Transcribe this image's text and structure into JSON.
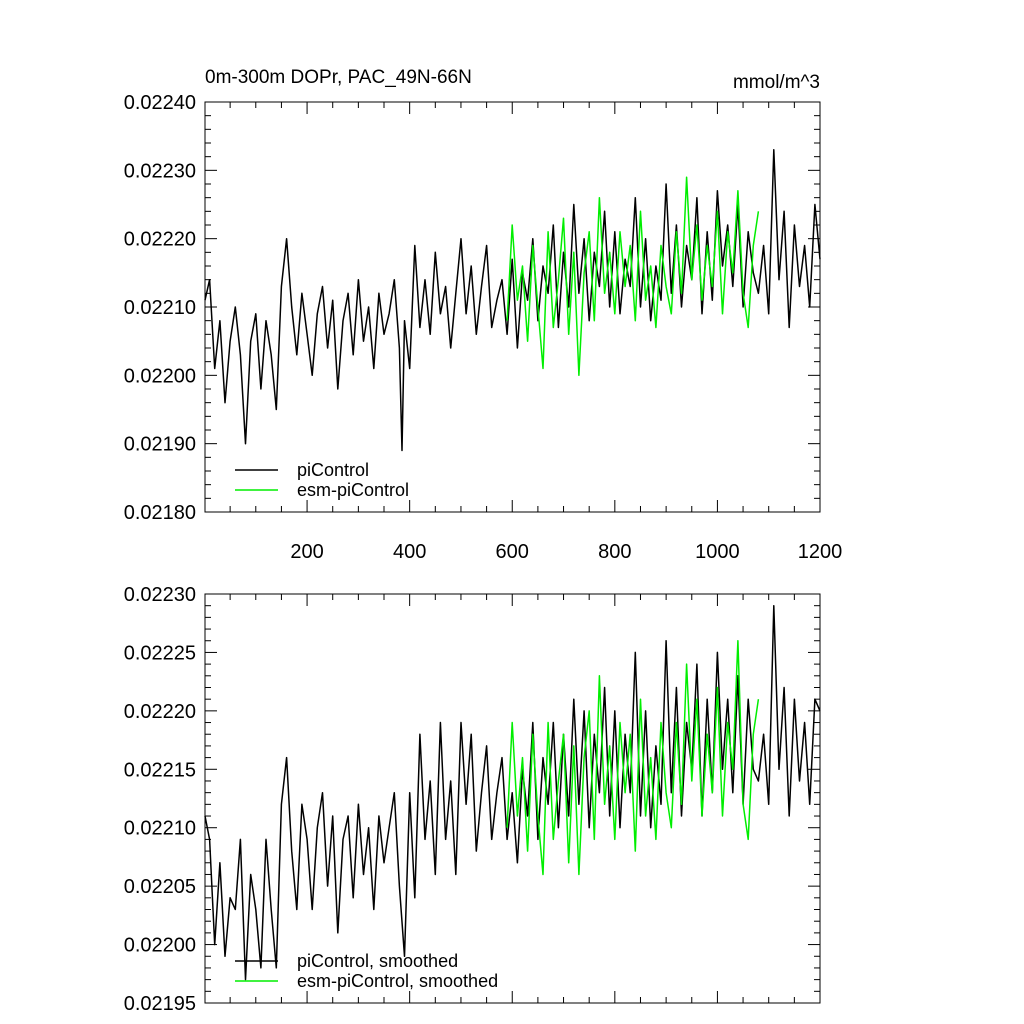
{
  "colors": {
    "piControl": "#000000",
    "esm_piControl": "#00ee00",
    "axis": "#000000"
  },
  "chart_data": [
    {
      "type": "line",
      "title": "0m-300m DOPr, PAC_49N-66N",
      "units_label": "mmol/m^3",
      "xlim": [
        1,
        1200
      ],
      "ylim": [
        0.0218,
        0.0224
      ],
      "x_ticks": [
        200,
        400,
        600,
        800,
        1000,
        1200
      ],
      "x_tick_labels": [
        "200",
        "400",
        "600",
        "800",
        "1000",
        "1200"
      ],
      "y_ticks": [
        0.0218,
        0.0219,
        0.022,
        0.0221,
        0.0222,
        0.0223,
        0.0224
      ],
      "y_tick_labels": [
        "0.02180",
        "0.02190",
        "0.02200",
        "0.02210",
        "0.02220",
        "0.02230",
        "0.02240"
      ],
      "legend": [
        "piControl",
        "esm-piControl"
      ],
      "legend_position": "bottom-left",
      "series": [
        {
          "name": "piControl",
          "x": [
            1,
            10,
            20,
            30,
            40,
            50,
            60,
            70,
            80,
            90,
            100,
            110,
            120,
            130,
            140,
            150,
            160,
            170,
            180,
            190,
            200,
            210,
            220,
            230,
            240,
            250,
            260,
            270,
            280,
            290,
            300,
            310,
            320,
            330,
            340,
            350,
            360,
            370,
            380,
            385,
            390,
            400,
            410,
            420,
            430,
            440,
            450,
            460,
            470,
            480,
            490,
            500,
            510,
            520,
            530,
            540,
            550,
            560,
            570,
            580,
            590,
            600,
            610,
            620,
            630,
            640,
            650,
            660,
            670,
            680,
            690,
            700,
            710,
            720,
            730,
            740,
            750,
            760,
            770,
            780,
            790,
            800,
            810,
            820,
            830,
            840,
            850,
            860,
            870,
            880,
            890,
            900,
            910,
            920,
            930,
            940,
            950,
            960,
            970,
            980,
            990,
            1000,
            1010,
            1020,
            1030,
            1040,
            1050,
            1060,
            1070,
            1080,
            1090,
            1100,
            1110,
            1120,
            1130,
            1140,
            1150,
            1160,
            1170,
            1180,
            1190,
            1200
          ],
          "y": [
            0.02211,
            0.02214,
            0.02201,
            0.02208,
            0.02196,
            0.02205,
            0.0221,
            0.02203,
            0.0219,
            0.02205,
            0.02209,
            0.02198,
            0.02208,
            0.02203,
            0.02195,
            0.02213,
            0.0222,
            0.0221,
            0.02203,
            0.02212,
            0.02206,
            0.022,
            0.02209,
            0.02213,
            0.02204,
            0.02211,
            0.02198,
            0.02208,
            0.02212,
            0.02203,
            0.02214,
            0.02205,
            0.0221,
            0.02201,
            0.02212,
            0.02206,
            0.02209,
            0.02214,
            0.02204,
            0.02189,
            0.02208,
            0.02201,
            0.02219,
            0.02207,
            0.02214,
            0.02206,
            0.02218,
            0.02209,
            0.02213,
            0.02204,
            0.02212,
            0.0222,
            0.02209,
            0.02216,
            0.02206,
            0.02213,
            0.02219,
            0.02207,
            0.02211,
            0.02214,
            0.02206,
            0.02217,
            0.02204,
            0.02215,
            0.02211,
            0.0222,
            0.02208,
            0.02216,
            0.02212,
            0.02222,
            0.02207,
            0.02218,
            0.0221,
            0.02225,
            0.02212,
            0.0222,
            0.02208,
            0.02218,
            0.02213,
            0.02224,
            0.0221,
            0.02221,
            0.02209,
            0.02217,
            0.02213,
            0.02226,
            0.0221,
            0.0222,
            0.02208,
            0.02216,
            0.02211,
            0.02228,
            0.02212,
            0.02222,
            0.0221,
            0.02219,
            0.02214,
            0.02226,
            0.02209,
            0.02221,
            0.02211,
            0.02227,
            0.02216,
            0.02222,
            0.02213,
            0.02225,
            0.0221,
            0.02221,
            0.02215,
            0.02212,
            0.02219,
            0.02209,
            0.02233,
            0.02214,
            0.02224,
            0.02207,
            0.02222,
            0.02213,
            0.02219,
            0.0221,
            0.02225,
            0.02217
          ]
        },
        {
          "name": "esm-piControl",
          "x": [
            590,
            600,
            610,
            620,
            630,
            640,
            650,
            660,
            670,
            680,
            690,
            700,
            710,
            720,
            730,
            740,
            750,
            760,
            770,
            780,
            790,
            800,
            810,
            820,
            830,
            840,
            850,
            860,
            870,
            880,
            890,
            900,
            910,
            920,
            930,
            940,
            950,
            960,
            970,
            980,
            990,
            1000,
            1010,
            1020,
            1030,
            1040,
            1050,
            1060,
            1070,
            1080
          ],
          "y": [
            0.02208,
            0.02222,
            0.02211,
            0.02216,
            0.02205,
            0.02219,
            0.0221,
            0.02201,
            0.02221,
            0.02207,
            0.02214,
            0.02223,
            0.02206,
            0.02218,
            0.022,
            0.02215,
            0.02221,
            0.02208,
            0.02226,
            0.02212,
            0.02218,
            0.02209,
            0.02221,
            0.02213,
            0.02219,
            0.02208,
            0.02224,
            0.02211,
            0.02216,
            0.02207,
            0.02219,
            0.02213,
            0.02209,
            0.02221,
            0.02212,
            0.02229,
            0.02214,
            0.02222,
            0.02211,
            0.02219,
            0.02213,
            0.02224,
            0.02209,
            0.02221,
            0.02215,
            0.02227,
            0.02212,
            0.02207,
            0.02219,
            0.02224
          ]
        }
      ]
    },
    {
      "type": "line",
      "title": "",
      "xlim": [
        1,
        1200
      ],
      "ylim": [
        0.02195,
        0.0223
      ],
      "x_ticks": [
        200,
        400,
        600,
        800,
        1000,
        1200
      ],
      "x_tick_labels": [],
      "y_ticks": [
        0.02195,
        0.022,
        0.02205,
        0.0221,
        0.02215,
        0.0222,
        0.02225,
        0.0223
      ],
      "y_tick_labels": [
        "0.02195",
        "0.02200",
        "0.02205",
        "0.02210",
        "0.02215",
        "0.02220",
        "0.02225",
        "0.02230"
      ],
      "legend": [
        "piControl, smoothed",
        "esm-piControl, smoothed"
      ],
      "legend_position": "bottom-left",
      "series": [
        {
          "name": "piControl, smoothed",
          "x": [
            1,
            10,
            20,
            30,
            40,
            50,
            60,
            70,
            80,
            90,
            100,
            110,
            120,
            130,
            140,
            150,
            160,
            170,
            180,
            190,
            200,
            210,
            220,
            230,
            240,
            250,
            260,
            270,
            280,
            290,
            300,
            310,
            320,
            330,
            340,
            350,
            360,
            370,
            380,
            390,
            400,
            410,
            420,
            430,
            440,
            450,
            460,
            470,
            480,
            490,
            500,
            510,
            520,
            530,
            540,
            550,
            560,
            570,
            580,
            590,
            600,
            610,
            620,
            630,
            640,
            650,
            660,
            670,
            680,
            690,
            700,
            710,
            720,
            730,
            740,
            750,
            760,
            770,
            780,
            790,
            800,
            810,
            820,
            830,
            840,
            850,
            860,
            870,
            880,
            890,
            900,
            910,
            920,
            930,
            940,
            950,
            960,
            970,
            980,
            990,
            1000,
            1010,
            1020,
            1030,
            1040,
            1050,
            1060,
            1070,
            1080,
            1090,
            1100,
            1110,
            1120,
            1130,
            1140,
            1150,
            1160,
            1170,
            1180,
            1190,
            1200
          ],
          "y": [
            0.02211,
            0.02209,
            0.022,
            0.02207,
            0.02199,
            0.02204,
            0.02203,
            0.02209,
            0.02197,
            0.02206,
            0.02203,
            0.02198,
            0.02209,
            0.02203,
            0.02198,
            0.02212,
            0.02216,
            0.02208,
            0.02203,
            0.02212,
            0.02209,
            0.02203,
            0.0221,
            0.02213,
            0.02205,
            0.02211,
            0.02201,
            0.02209,
            0.02211,
            0.02204,
            0.02212,
            0.02206,
            0.0221,
            0.02203,
            0.02211,
            0.02207,
            0.0221,
            0.02213,
            0.02205,
            0.02199,
            0.02213,
            0.02204,
            0.02218,
            0.02209,
            0.02214,
            0.02206,
            0.02219,
            0.02209,
            0.02214,
            0.02206,
            0.02219,
            0.02212,
            0.02218,
            0.02208,
            0.02213,
            0.02217,
            0.02209,
            0.02213,
            0.02216,
            0.02209,
            0.02213,
            0.02207,
            0.02215,
            0.02211,
            0.02219,
            0.02209,
            0.02216,
            0.02212,
            0.02219,
            0.0221,
            0.02218,
            0.02211,
            0.02221,
            0.02212,
            0.0222,
            0.0221,
            0.02218,
            0.02213,
            0.02222,
            0.02211,
            0.0222,
            0.0221,
            0.02218,
            0.02213,
            0.02225,
            0.02211,
            0.0222,
            0.0221,
            0.02217,
            0.02212,
            0.02226,
            0.02213,
            0.02222,
            0.02211,
            0.02219,
            0.02215,
            0.02224,
            0.02211,
            0.02221,
            0.02213,
            0.02225,
            0.02215,
            0.02221,
            0.02213,
            0.02223,
            0.02212,
            0.02221,
            0.02215,
            0.02214,
            0.02218,
            0.02212,
            0.02229,
            0.02215,
            0.02222,
            0.02211,
            0.02221,
            0.02214,
            0.02219,
            0.02212,
            0.02221,
            0.0222
          ]
        },
        {
          "name": "esm-piControl, smoothed",
          "x": [
            590,
            600,
            610,
            620,
            630,
            640,
            650,
            660,
            670,
            680,
            690,
            700,
            710,
            720,
            730,
            740,
            750,
            760,
            770,
            780,
            790,
            800,
            810,
            820,
            830,
            840,
            850,
            860,
            870,
            880,
            890,
            900,
            910,
            920,
            930,
            940,
            950,
            960,
            970,
            980,
            990,
            1000,
            1010,
            1020,
            1030,
            1040,
            1050,
            1060,
            1070,
            1080
          ],
          "y": [
            0.0221,
            0.02219,
            0.02211,
            0.02216,
            0.02208,
            0.02218,
            0.02211,
            0.02206,
            0.02219,
            0.02209,
            0.02214,
            0.02218,
            0.02207,
            0.02217,
            0.02206,
            0.02216,
            0.0222,
            0.02209,
            0.02223,
            0.02212,
            0.02217,
            0.02209,
            0.02219,
            0.02213,
            0.02218,
            0.02208,
            0.02221,
            0.02211,
            0.02216,
            0.02209,
            0.02219,
            0.02213,
            0.0221,
            0.02219,
            0.02212,
            0.02224,
            0.02214,
            0.02221,
            0.02211,
            0.02218,
            0.02213,
            0.02222,
            0.02211,
            0.02219,
            0.02215,
            0.02226,
            0.02212,
            0.02209,
            0.02218,
            0.02221
          ]
        }
      ]
    }
  ]
}
